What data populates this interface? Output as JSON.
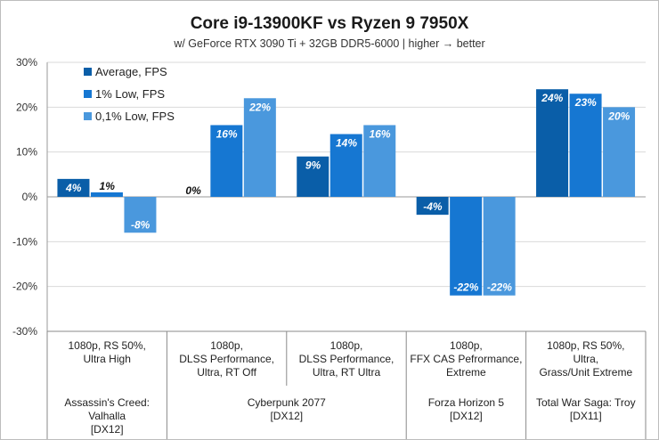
{
  "chart_data": {
    "type": "bar",
    "title": "Core i9-13900KF vs Ryzen 9 7950X",
    "subtitle": "w/ GeForce RTX 3090 Ti + 32GB DDR5-6000 | higher → better",
    "ylim": [
      -30,
      30
    ],
    "yticks": [
      "30%",
      "20%",
      "10%",
      "0%",
      "-10%",
      "-20%",
      "-30%"
    ],
    "ytick_values": [
      30,
      20,
      10,
      0,
      -10,
      -20,
      -30
    ],
    "grid": true,
    "legend_position": "top-left",
    "colors": [
      "#0a5ea8",
      "#1677d2",
      "#4a98dd"
    ],
    "series": [
      {
        "name": "Average, FPS",
        "values": [
          4,
          0,
          9,
          -4,
          24
        ]
      },
      {
        "name": "1% Low, FPS",
        "values": [
          1,
          16,
          14,
          -22,
          23
        ]
      },
      {
        "name": "0,1% Low, FPS",
        "values": [
          -8,
          22,
          16,
          -22,
          20
        ]
      }
    ],
    "value_labels": [
      [
        "4%",
        "0%",
        "9%",
        "-4%",
        "24%"
      ],
      [
        "1%",
        "16%",
        "14%",
        "-22%",
        "23%"
      ],
      [
        "-8%",
        "22%",
        "16%",
        "-22%",
        "20%"
      ]
    ],
    "categories": [
      {
        "settings": [
          "1080p, RS 50%,",
          "Ultra High"
        ]
      },
      {
        "settings": [
          "1080p,",
          "DLSS Performance,",
          "Ultra, RT Off"
        ]
      },
      {
        "settings": [
          "1080p,",
          "DLSS Performance,",
          "Ultra, RT Ultra"
        ]
      },
      {
        "settings": [
          "1080p,",
          "FFX CAS Pefrormance,",
          "Extreme"
        ]
      },
      {
        "settings": [
          "1080p, RS 50%,",
          "Ultra,",
          "Grass/Unit Extreme"
        ]
      }
    ],
    "games": [
      {
        "name": [
          "Assassin's Creed:",
          "Valhalla",
          "[DX12]"
        ],
        "span": [
          0,
          0
        ]
      },
      {
        "name": [
          "Cyberpunk 2077",
          "[DX12]"
        ],
        "span": [
          1,
          2
        ]
      },
      {
        "name": [
          "Forza Horizon 5",
          "[DX12]"
        ],
        "span": [
          3,
          3
        ]
      },
      {
        "name": [
          "Total War Saga: Troy",
          "[DX11]"
        ],
        "span": [
          4,
          4
        ]
      }
    ]
  }
}
